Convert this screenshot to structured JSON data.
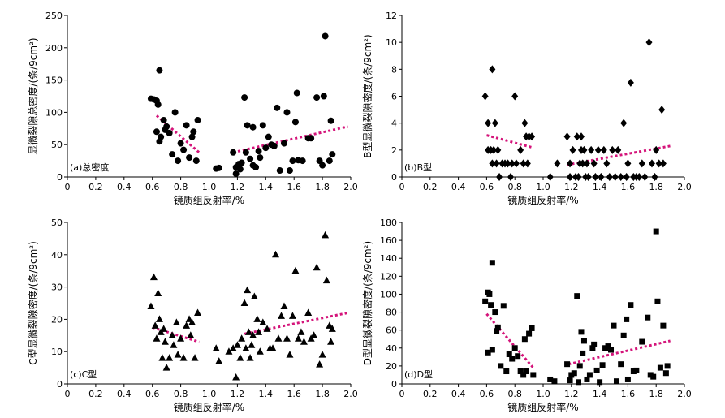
{
  "chart_data": [
    {
      "type": "scatter",
      "panel_label": "(a)总密度",
      "xlabel": "镜质组反射率/%",
      "ylabel": "显微裂隙总密度/(条/9cm²)",
      "xlim": [
        0,
        2.0
      ],
      "ylim": [
        0,
        250
      ],
      "xticks": [
        "0",
        "0.2",
        "0.4",
        "0.6",
        "0.8",
        "1.0",
        "1.2",
        "1.4",
        "1.6",
        "1.8",
        "2.0"
      ],
      "yticks": [
        "0",
        "50",
        "100",
        "150",
        "200",
        "250"
      ],
      "marker": "circle",
      "points": [
        [
          0.59,
          121
        ],
        [
          0.61,
          120
        ],
        [
          0.63,
          118
        ],
        [
          0.63,
          70
        ],
        [
          0.64,
          112
        ],
        [
          0.65,
          165
        ],
        [
          0.65,
          55
        ],
        [
          0.66,
          62
        ],
        [
          0.68,
          88
        ],
        [
          0.69,
          73
        ],
        [
          0.7,
          78
        ],
        [
          0.72,
          68
        ],
        [
          0.74,
          35
        ],
        [
          0.76,
          100
        ],
        [
          0.78,
          25
        ],
        [
          0.8,
          52
        ],
        [
          0.82,
          42
        ],
        [
          0.84,
          80
        ],
        [
          0.86,
          30
        ],
        [
          0.88,
          62
        ],
        [
          0.89,
          70
        ],
        [
          0.91,
          25
        ],
        [
          0.92,
          88
        ],
        [
          1.05,
          13
        ],
        [
          1.07,
          14
        ],
        [
          1.17,
          38
        ],
        [
          1.19,
          5
        ],
        [
          1.19,
          15
        ],
        [
          1.21,
          20
        ],
        [
          1.22,
          12
        ],
        [
          1.23,
          22
        ],
        [
          1.25,
          123
        ],
        [
          1.26,
          38
        ],
        [
          1.27,
          80
        ],
        [
          1.29,
          28
        ],
        [
          1.31,
          18
        ],
        [
          1.31,
          77
        ],
        [
          1.33,
          15
        ],
        [
          1.35,
          40
        ],
        [
          1.36,
          30
        ],
        [
          1.38,
          80
        ],
        [
          1.4,
          45
        ],
        [
          1.42,
          62
        ],
        [
          1.44,
          50
        ],
        [
          1.46,
          48
        ],
        [
          1.48,
          107
        ],
        [
          1.5,
          10
        ],
        [
          1.53,
          52
        ],
        [
          1.55,
          100
        ],
        [
          1.57,
          10
        ],
        [
          1.59,
          25
        ],
        [
          1.61,
          85
        ],
        [
          1.62,
          130
        ],
        [
          1.63,
          26
        ],
        [
          1.66,
          25
        ],
        [
          1.7,
          60
        ],
        [
          1.72,
          60
        ],
        [
          1.76,
          123
        ],
        [
          1.78,
          25
        ],
        [
          1.8,
          18
        ],
        [
          1.81,
          125
        ],
        [
          1.82,
          218
        ],
        [
          1.85,
          25
        ],
        [
          1.86,
          87
        ],
        [
          1.87,
          35
        ]
      ],
      "trend_lines": [
        [
          [
            0.63,
            95
          ],
          [
            0.93,
            38
          ]
        ],
        [
          [
            1.17,
            38
          ],
          [
            1.98,
            78
          ]
        ]
      ]
    },
    {
      "type": "scatter",
      "panel_label": "(b)B型",
      "xlabel": "镜质组反射率/%",
      "ylabel": "B型显微裂隙密度/(条/9cm²)",
      "xlim": [
        0,
        2.0
      ],
      "ylim": [
        0,
        12
      ],
      "xticks": [
        "0",
        "0.2",
        "0.4",
        "0.6",
        "0.8",
        "1.0",
        "1.2",
        "1.4",
        "1.6",
        "1.8",
        "2.0"
      ],
      "yticks": [
        "0",
        "2",
        "4",
        "6",
        "8",
        "10",
        "12"
      ],
      "marker": "diamond",
      "points": [
        [
          0.59,
          6
        ],
        [
          0.61,
          4
        ],
        [
          0.61,
          2
        ],
        [
          0.63,
          2
        ],
        [
          0.64,
          8
        ],
        [
          0.64,
          1
        ],
        [
          0.65,
          2
        ],
        [
          0.66,
          4
        ],
        [
          0.67,
          1
        ],
        [
          0.68,
          2
        ],
        [
          0.69,
          0
        ],
        [
          0.71,
          1
        ],
        [
          0.73,
          1
        ],
        [
          0.75,
          1
        ],
        [
          0.77,
          0
        ],
        [
          0.78,
          1
        ],
        [
          0.8,
          6
        ],
        [
          0.81,
          1
        ],
        [
          0.84,
          2
        ],
        [
          0.86,
          1
        ],
        [
          0.87,
          4
        ],
        [
          0.88,
          3
        ],
        [
          0.89,
          1
        ],
        [
          0.9,
          3
        ],
        [
          0.92,
          3
        ],
        [
          1.05,
          0
        ],
        [
          1.1,
          1
        ],
        [
          1.17,
          3
        ],
        [
          1.19,
          0
        ],
        [
          1.19,
          1
        ],
        [
          1.21,
          2
        ],
        [
          1.23,
          0
        ],
        [
          1.24,
          3
        ],
        [
          1.25,
          0
        ],
        [
          1.26,
          1
        ],
        [
          1.27,
          2
        ],
        [
          1.27,
          3
        ],
        [
          1.28,
          1
        ],
        [
          1.29,
          2
        ],
        [
          1.3,
          0
        ],
        [
          1.31,
          1
        ],
        [
          1.32,
          0
        ],
        [
          1.34,
          2
        ],
        [
          1.36,
          1
        ],
        [
          1.37,
          0
        ],
        [
          1.39,
          2
        ],
        [
          1.41,
          0
        ],
        [
          1.43,
          2
        ],
        [
          1.45,
          1
        ],
        [
          1.47,
          0
        ],
        [
          1.49,
          2
        ],
        [
          1.51,
          0
        ],
        [
          1.53,
          2
        ],
        [
          1.55,
          0
        ],
        [
          1.57,
          4
        ],
        [
          1.59,
          0
        ],
        [
          1.6,
          1
        ],
        [
          1.62,
          7
        ],
        [
          1.64,
          0
        ],
        [
          1.66,
          0
        ],
        [
          1.68,
          0
        ],
        [
          1.7,
          1
        ],
        [
          1.72,
          0
        ],
        [
          1.75,
          10
        ],
        [
          1.77,
          1
        ],
        [
          1.79,
          0
        ],
        [
          1.8,
          2
        ],
        [
          1.82,
          1
        ],
        [
          1.84,
          5
        ],
        [
          1.85,
          1
        ]
      ],
      "trend_lines": [
        [
          [
            0.6,
            3.1
          ],
          [
            0.92,
            2.2
          ]
        ],
        [
          [
            1.17,
            0.9
          ],
          [
            1.9,
            2.3
          ]
        ]
      ]
    },
    {
      "type": "scatter",
      "panel_label": "(c)C型",
      "xlabel": "镜质组反射率/%",
      "ylabel": "C型显微裂隙密度/(条/9cm²)",
      "xlim": [
        0,
        2.0
      ],
      "ylim": [
        0,
        50
      ],
      "xticks": [
        "0",
        "0.2",
        "0.4",
        "0.6",
        "0.8",
        "1.0",
        "1.2",
        "1.4",
        "1.6",
        "1.8",
        "2.0"
      ],
      "yticks": [
        "0",
        "10",
        "20",
        "30",
        "40",
        "50"
      ],
      "marker": "triangle",
      "points": [
        [
          0.59,
          24
        ],
        [
          0.61,
          33
        ],
        [
          0.62,
          18
        ],
        [
          0.63,
          14
        ],
        [
          0.64,
          28
        ],
        [
          0.65,
          20
        ],
        [
          0.66,
          16
        ],
        [
          0.67,
          8
        ],
        [
          0.68,
          17
        ],
        [
          0.69,
          13
        ],
        [
          0.7,
          5
        ],
        [
          0.72,
          8
        ],
        [
          0.74,
          15
        ],
        [
          0.75,
          12
        ],
        [
          0.77,
          19
        ],
        [
          0.78,
          9
        ],
        [
          0.8,
          14
        ],
        [
          0.82,
          8
        ],
        [
          0.84,
          18
        ],
        [
          0.86,
          20
        ],
        [
          0.87,
          15
        ],
        [
          0.88,
          19
        ],
        [
          0.9,
          8
        ],
        [
          0.92,
          22
        ],
        [
          1.05,
          11
        ],
        [
          1.07,
          7
        ],
        [
          1.14,
          10
        ],
        [
          1.17,
          11
        ],
        [
          1.19,
          2
        ],
        [
          1.2,
          12
        ],
        [
          1.22,
          8
        ],
        [
          1.23,
          14
        ],
        [
          1.25,
          25
        ],
        [
          1.26,
          11
        ],
        [
          1.27,
          29
        ],
        [
          1.28,
          16
        ],
        [
          1.29,
          8
        ],
        [
          1.3,
          12
        ],
        [
          1.31,
          15
        ],
        [
          1.32,
          27
        ],
        [
          1.34,
          20
        ],
        [
          1.35,
          16
        ],
        [
          1.36,
          10
        ],
        [
          1.38,
          19
        ],
        [
          1.41,
          17
        ],
        [
          1.43,
          11
        ],
        [
          1.45,
          11
        ],
        [
          1.47,
          40
        ],
        [
          1.49,
          14
        ],
        [
          1.51,
          21
        ],
        [
          1.53,
          24
        ],
        [
          1.55,
          14
        ],
        [
          1.57,
          9
        ],
        [
          1.59,
          21
        ],
        [
          1.61,
          35
        ],
        [
          1.63,
          14
        ],
        [
          1.65,
          16
        ],
        [
          1.67,
          13
        ],
        [
          1.7,
          22
        ],
        [
          1.72,
          14
        ],
        [
          1.74,
          15
        ],
        [
          1.76,
          36
        ],
        [
          1.78,
          6
        ],
        [
          1.8,
          9
        ],
        [
          1.82,
          46
        ],
        [
          1.83,
          32
        ],
        [
          1.85,
          18
        ],
        [
          1.86,
          13
        ],
        [
          1.87,
          17
        ]
      ],
      "trend_lines": [
        [
          [
            0.6,
            17.5
          ],
          [
            0.93,
            13
          ]
        ],
        [
          [
            1.25,
            15.5
          ],
          [
            1.98,
            22
          ]
        ]
      ]
    },
    {
      "type": "scatter",
      "panel_label": "(d)D型",
      "xlabel": "镜质组反射率/%",
      "ylabel": "D型显微裂隙密度/(条/9cm²)",
      "xlim": [
        0,
        2.0
      ],
      "ylim": [
        0,
        180
      ],
      "xticks": [
        "0",
        "0.2",
        "0.4",
        "0.6",
        "0.8",
        "1.0",
        "1.2",
        "1.4",
        "1.6",
        "1.8",
        "2.0"
      ],
      "yticks": [
        "0",
        "20",
        "40",
        "60",
        "80",
        "100",
        "120",
        "140",
        "160",
        "180"
      ],
      "marker": "square",
      "points": [
        [
          0.59,
          92
        ],
        [
          0.61,
          102
        ],
        [
          0.61,
          35
        ],
        [
          0.62,
          100
        ],
        [
          0.63,
          88
        ],
        [
          0.64,
          135
        ],
        [
          0.64,
          38
        ],
        [
          0.66,
          80
        ],
        [
          0.67,
          59
        ],
        [
          0.68,
          63
        ],
        [
          0.7,
          20
        ],
        [
          0.72,
          87
        ],
        [
          0.74,
          14
        ],
        [
          0.76,
          33
        ],
        [
          0.78,
          28
        ],
        [
          0.8,
          40
        ],
        [
          0.82,
          31
        ],
        [
          0.84,
          14
        ],
        [
          0.86,
          10
        ],
        [
          0.87,
          50
        ],
        [
          0.88,
          14
        ],
        [
          0.9,
          56
        ],
        [
          0.92,
          62
        ],
        [
          0.93,
          10
        ],
        [
          1.05,
          5
        ],
        [
          1.08,
          3
        ],
        [
          1.17,
          22
        ],
        [
          1.19,
          4
        ],
        [
          1.2,
          10
        ],
        [
          1.22,
          12
        ],
        [
          1.24,
          98
        ],
        [
          1.25,
          2
        ],
        [
          1.26,
          20
        ],
        [
          1.27,
          58
        ],
        [
          1.28,
          34
        ],
        [
          1.29,
          48
        ],
        [
          1.31,
          5
        ],
        [
          1.33,
          10
        ],
        [
          1.35,
          40
        ],
        [
          1.36,
          44
        ],
        [
          1.38,
          15
        ],
        [
          1.4,
          2
        ],
        [
          1.42,
          21
        ],
        [
          1.44,
          40
        ],
        [
          1.46,
          42
        ],
        [
          1.48,
          38
        ],
        [
          1.5,
          65
        ],
        [
          1.52,
          3
        ],
        [
          1.55,
          22
        ],
        [
          1.57,
          54
        ],
        [
          1.59,
          72
        ],
        [
          1.6,
          5
        ],
        [
          1.62,
          88
        ],
        [
          1.64,
          14
        ],
        [
          1.66,
          15
        ],
        [
          1.7,
          47
        ],
        [
          1.74,
          74
        ],
        [
          1.76,
          10
        ],
        [
          1.78,
          8
        ],
        [
          1.8,
          170
        ],
        [
          1.81,
          92
        ],
        [
          1.83,
          18
        ],
        [
          1.85,
          65
        ],
        [
          1.87,
          12
        ],
        [
          1.88,
          20
        ]
      ],
      "trend_lines": [
        [
          [
            0.6,
            78
          ],
          [
            0.93,
            18
          ]
        ],
        [
          [
            1.18,
            22
          ],
          [
            1.9,
            48
          ]
        ]
      ]
    }
  ]
}
